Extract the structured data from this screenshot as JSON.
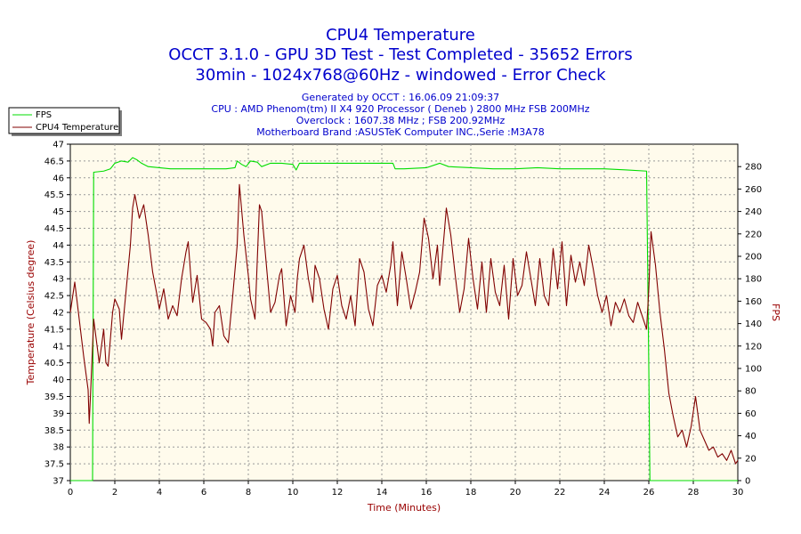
{
  "chart_data": {
    "type": "line",
    "title": "CPU4 Temperature",
    "subtitle_lines": [
      "OCCT 3.1.0 - GPU 3D Test - Test Completed - 35652 Errors",
      "30min - 1024x768@60Hz - windowed - Error Check"
    ],
    "info_lines": [
      "Generated by OCCT : 16.06.09 21:09:37",
      "CPU : AMD Phenom(tm) II X4 920 Processor ( Deneb ) 2800 MHz FSB 200MHz",
      "Overclock : 1607.38 MHz ; FSB 200.92MHz",
      "Motherboard Brand :ASUSTeK Computer INC.,Serie :M3A78"
    ],
    "xlabel": "Time (Minutes)",
    "ylabel": "Temperature (Celsius degree)",
    "y2label": "FPS",
    "xlim": [
      0,
      30
    ],
    "ylim": [
      37,
      47
    ],
    "y2lim": [
      0,
      300
    ],
    "x_ticks": [
      "0",
      "2",
      "4",
      "6",
      "8",
      "10",
      "12",
      "14",
      "16",
      "18",
      "20",
      "22",
      "24",
      "26",
      "28",
      "30"
    ],
    "y_ticks": [
      "37",
      "37.5",
      "38",
      "38.5",
      "39",
      "39.5",
      "40",
      "40.5",
      "41",
      "41.5",
      "42",
      "42.5",
      "43",
      "43.5",
      "44",
      "44.5",
      "45",
      "45.5",
      "46",
      "46.5",
      "47"
    ],
    "y2_ticks": [
      "0",
      "20",
      "40",
      "60",
      "80",
      "100",
      "120",
      "140",
      "160",
      "180",
      "200",
      "220",
      "240",
      "260",
      "280"
    ],
    "grid": true,
    "legend_position": "top-left",
    "series": [
      {
        "name": "FPS",
        "axis": "right",
        "color": "#00dd00",
        "points": [
          [
            0,
            0
          ],
          [
            1.0,
            0
          ],
          [
            1.05,
            275
          ],
          [
            1.5,
            276
          ],
          [
            1.8,
            278
          ],
          [
            2.0,
            283
          ],
          [
            2.3,
            285
          ],
          [
            2.6,
            284
          ],
          [
            2.8,
            288
          ],
          [
            3.0,
            286
          ],
          [
            3.2,
            283
          ],
          [
            3.5,
            280
          ],
          [
            4.0,
            279
          ],
          [
            4.5,
            278
          ],
          [
            5.0,
            278
          ],
          [
            6.0,
            278
          ],
          [
            7.0,
            278
          ],
          [
            7.4,
            279
          ],
          [
            7.5,
            285
          ],
          [
            7.7,
            282
          ],
          [
            7.9,
            280
          ],
          [
            8.1,
            285
          ],
          [
            8.4,
            284
          ],
          [
            8.6,
            280
          ],
          [
            9.0,
            283
          ],
          [
            9.5,
            283
          ],
          [
            10.0,
            282
          ],
          [
            10.15,
            277
          ],
          [
            10.3,
            283
          ],
          [
            11.0,
            283
          ],
          [
            12.0,
            283
          ],
          [
            13.0,
            283
          ],
          [
            14.0,
            283
          ],
          [
            14.5,
            283
          ],
          [
            14.6,
            278
          ],
          [
            15.0,
            278
          ],
          [
            16.0,
            279
          ],
          [
            16.6,
            283
          ],
          [
            17.0,
            280
          ],
          [
            18.0,
            279
          ],
          [
            19.0,
            278
          ],
          [
            20.0,
            278
          ],
          [
            21.0,
            279
          ],
          [
            22.0,
            278
          ],
          [
            23.0,
            278
          ],
          [
            24.0,
            278
          ],
          [
            25.0,
            277
          ],
          [
            25.9,
            276
          ],
          [
            26.0,
            100
          ],
          [
            26.05,
            0
          ],
          [
            30,
            0
          ]
        ]
      },
      {
        "name": "CPU4 Temperature",
        "axis": "left",
        "color": "#800000",
        "points": [
          [
            0,
            42
          ],
          [
            0.2,
            42.9
          ],
          [
            0.4,
            41.8
          ],
          [
            0.6,
            40.7
          ],
          [
            0.8,
            39.7
          ],
          [
            0.85,
            38.7
          ],
          [
            0.95,
            40.2
          ],
          [
            1.05,
            41.8
          ],
          [
            1.3,
            40.5
          ],
          [
            1.5,
            41.5
          ],
          [
            1.6,
            40.5
          ],
          [
            1.7,
            40.4
          ],
          [
            1.9,
            42
          ],
          [
            2.0,
            42.4
          ],
          [
            2.2,
            42.1
          ],
          [
            2.3,
            41.2
          ],
          [
            2.5,
            42.6
          ],
          [
            2.7,
            44
          ],
          [
            2.8,
            45.1
          ],
          [
            2.9,
            45.5
          ],
          [
            3.1,
            44.8
          ],
          [
            3.3,
            45.2
          ],
          [
            3.5,
            44.3
          ],
          [
            3.7,
            43.2
          ],
          [
            3.9,
            42.5
          ],
          [
            4.0,
            42.1
          ],
          [
            4.2,
            42.7
          ],
          [
            4.4,
            41.8
          ],
          [
            4.6,
            42.2
          ],
          [
            4.8,
            41.9
          ],
          [
            5.0,
            43
          ],
          [
            5.2,
            43.8
          ],
          [
            5.3,
            44.1
          ],
          [
            5.5,
            42.3
          ],
          [
            5.7,
            43.1
          ],
          [
            5.9,
            41.8
          ],
          [
            6.1,
            41.7
          ],
          [
            6.3,
            41.5
          ],
          [
            6.4,
            41.0
          ],
          [
            6.5,
            42
          ],
          [
            6.7,
            42.2
          ],
          [
            6.9,
            41.3
          ],
          [
            7.1,
            41.1
          ],
          [
            7.3,
            42.5
          ],
          [
            7.5,
            44.0
          ],
          [
            7.6,
            45.8
          ],
          [
            7.8,
            44.3
          ],
          [
            8.0,
            43.1
          ],
          [
            8.1,
            42.4
          ],
          [
            8.3,
            41.8
          ],
          [
            8.5,
            45.2
          ],
          [
            8.6,
            45.0
          ],
          [
            8.8,
            43.5
          ],
          [
            9.0,
            42.0
          ],
          [
            9.2,
            42.3
          ],
          [
            9.4,
            43.1
          ],
          [
            9.5,
            43.3
          ],
          [
            9.7,
            41.6
          ],
          [
            9.9,
            42.5
          ],
          [
            10.1,
            42.0
          ],
          [
            10.2,
            43
          ],
          [
            10.3,
            43.6
          ],
          [
            10.5,
            44.0
          ],
          [
            10.7,
            43.0
          ],
          [
            10.9,
            42.3
          ],
          [
            11.0,
            43.4
          ],
          [
            11.2,
            43.0
          ],
          [
            11.4,
            42.1
          ],
          [
            11.6,
            41.5
          ],
          [
            11.8,
            42.7
          ],
          [
            12.0,
            43.1
          ],
          [
            12.2,
            42.2
          ],
          [
            12.4,
            41.8
          ],
          [
            12.6,
            42.5
          ],
          [
            12.8,
            41.6
          ],
          [
            13.0,
            43.6
          ],
          [
            13.2,
            43.2
          ],
          [
            13.4,
            42.1
          ],
          [
            13.6,
            41.6
          ],
          [
            13.8,
            42.8
          ],
          [
            14.0,
            43.1
          ],
          [
            14.2,
            42.6
          ],
          [
            14.4,
            43.4
          ],
          [
            14.5,
            44.1
          ],
          [
            14.7,
            42.2
          ],
          [
            14.9,
            43.8
          ],
          [
            15.1,
            43.0
          ],
          [
            15.3,
            42.1
          ],
          [
            15.5,
            42.6
          ],
          [
            15.7,
            43.2
          ],
          [
            15.9,
            44.8
          ],
          [
            16.1,
            44.2
          ],
          [
            16.3,
            43.0
          ],
          [
            16.5,
            44.0
          ],
          [
            16.6,
            42.8
          ],
          [
            16.8,
            44.3
          ],
          [
            16.9,
            45.1
          ],
          [
            17.1,
            44.3
          ],
          [
            17.3,
            43.1
          ],
          [
            17.5,
            42.0
          ],
          [
            17.7,
            42.7
          ],
          [
            17.9,
            44.2
          ],
          [
            18.1,
            43.0
          ],
          [
            18.3,
            42.1
          ],
          [
            18.5,
            43.5
          ],
          [
            18.7,
            42.0
          ],
          [
            18.9,
            43.6
          ],
          [
            19.1,
            42.6
          ],
          [
            19.3,
            42.2
          ],
          [
            19.5,
            43.4
          ],
          [
            19.7,
            41.8
          ],
          [
            19.9,
            43.6
          ],
          [
            20.1,
            42.5
          ],
          [
            20.3,
            42.8
          ],
          [
            20.5,
            43.8
          ],
          [
            20.7,
            43.0
          ],
          [
            20.9,
            42.2
          ],
          [
            21.1,
            43.6
          ],
          [
            21.3,
            42.5
          ],
          [
            21.5,
            42.2
          ],
          [
            21.7,
            43.9
          ],
          [
            21.9,
            42.7
          ],
          [
            22.1,
            44.1
          ],
          [
            22.3,
            42.2
          ],
          [
            22.5,
            43.7
          ],
          [
            22.7,
            42.9
          ],
          [
            22.9,
            43.5
          ],
          [
            23.1,
            42.8
          ],
          [
            23.3,
            44.0
          ],
          [
            23.5,
            43.3
          ],
          [
            23.7,
            42.5
          ],
          [
            23.9,
            42.0
          ],
          [
            24.1,
            42.5
          ],
          [
            24.3,
            41.6
          ],
          [
            24.5,
            42.3
          ],
          [
            24.7,
            42.0
          ],
          [
            24.9,
            42.4
          ],
          [
            25.1,
            41.9
          ],
          [
            25.3,
            41.7
          ],
          [
            25.5,
            42.3
          ],
          [
            25.7,
            41.9
          ],
          [
            25.9,
            41.5
          ],
          [
            26.0,
            42.7
          ],
          [
            26.1,
            44.4
          ],
          [
            26.3,
            43.4
          ],
          [
            26.5,
            42.0
          ],
          [
            26.7,
            40.9
          ],
          [
            26.9,
            39.6
          ],
          [
            27.1,
            38.9
          ],
          [
            27.3,
            38.3
          ],
          [
            27.5,
            38.5
          ],
          [
            27.7,
            38.0
          ],
          [
            27.9,
            38.6
          ],
          [
            28.1,
            39.5
          ],
          [
            28.3,
            38.5
          ],
          [
            28.5,
            38.2
          ],
          [
            28.7,
            37.9
          ],
          [
            28.9,
            38.0
          ],
          [
            29.1,
            37.7
          ],
          [
            29.3,
            37.8
          ],
          [
            29.5,
            37.6
          ],
          [
            29.7,
            37.9
          ],
          [
            29.9,
            37.5
          ],
          [
            30,
            37.6
          ]
        ]
      }
    ]
  }
}
